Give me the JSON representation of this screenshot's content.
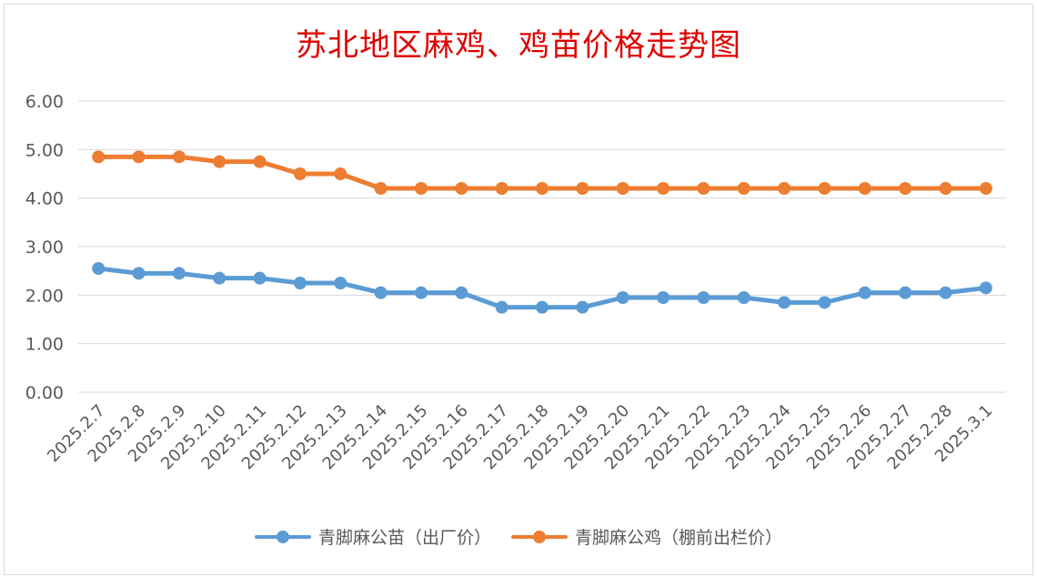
{
  "chart_data": {
    "type": "line",
    "title": "苏北地区麻鸡、鸡苗价格走势图",
    "categories": [
      "2025.2.7",
      "2025.2.8",
      "2025.2.9",
      "2025.2.10",
      "2025.2.11",
      "2025.2.12",
      "2025.2.13",
      "2025.2.14",
      "2025.2.15",
      "2025.2.16",
      "2025.2.17",
      "2025.2.18",
      "2025.2.19",
      "2025.2.20",
      "2025.2.21",
      "2025.2.22",
      "2025.2.23",
      "2025.2.24",
      "2025.2.25",
      "2025.2.26",
      "2025.2.27",
      "2025.2.28",
      "2025.3.1"
    ],
    "ylim": [
      0,
      6
    ],
    "yticks": [
      "0.00",
      "1.00",
      "2.00",
      "3.00",
      "4.00",
      "5.00",
      "6.00"
    ],
    "grid": true,
    "legend_position": "bottom",
    "series": [
      {
        "name": "青脚麻公苗（出厂价）",
        "color": "#5b9bd5",
        "values": [
          2.55,
          2.45,
          2.45,
          2.35,
          2.35,
          2.25,
          2.25,
          2.05,
          2.05,
          2.05,
          1.75,
          1.75,
          1.75,
          1.95,
          1.95,
          1.95,
          1.95,
          1.85,
          1.85,
          2.05,
          2.05,
          2.05,
          2.15
        ]
      },
      {
        "name": "青脚麻公鸡（棚前出栏价）",
        "color": "#ed7d31",
        "values": [
          4.85,
          4.85,
          4.85,
          4.75,
          4.75,
          4.5,
          4.5,
          4.2,
          4.2,
          4.2,
          4.2,
          4.2,
          4.2,
          4.2,
          4.2,
          4.2,
          4.2,
          4.2,
          4.2,
          4.2,
          4.2,
          4.2,
          4.2
        ]
      }
    ]
  }
}
